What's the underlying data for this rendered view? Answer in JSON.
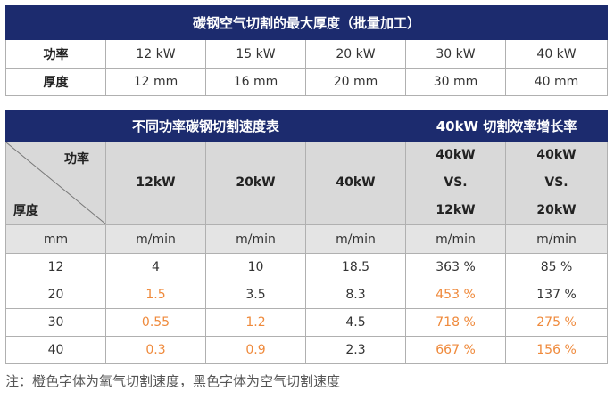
{
  "table1": {
    "title": "碳钢空气切割的最大厚度（批量加工）",
    "rows": [
      [
        "功率",
        "12 kW",
        "15 kW",
        "20 kW",
        "30 kW",
        "40 kW"
      ],
      [
        "厚度",
        "12 mm",
        "16 mm",
        "20 mm",
        "30 mm",
        "40 mm"
      ]
    ]
  },
  "table2": {
    "title_left": "不同功率碳钢切割速度表",
    "title_right": "40kW 切割效率增长率",
    "corner": {
      "top": "功率",
      "bottom": "厚度"
    },
    "columns": [
      [
        "12kW"
      ],
      [
        "20kW"
      ],
      [
        "40kW"
      ],
      [
        "40kW",
        "VS.",
        "12kW"
      ],
      [
        "40kW",
        "VS.",
        "20kW"
      ]
    ],
    "units": [
      "mm",
      "m/min",
      "m/min",
      "m/min",
      "m/min",
      "m/min"
    ],
    "rows": [
      [
        "12",
        "4",
        "10",
        "18.5",
        "363 %",
        "85 %"
      ],
      [
        "20",
        "1.5",
        "3.5",
        "8.3",
        "453 %",
        "137 %"
      ],
      [
        "30",
        "0.55",
        "1.2",
        "4.5",
        "718 %",
        "275 %"
      ],
      [
        "40",
        "0.3",
        "0.9",
        "2.3",
        "667 %",
        "156 %"
      ]
    ]
  },
  "note": "注：橙色字体为氧气切割速度，黑色字体为空气切割速度"
}
